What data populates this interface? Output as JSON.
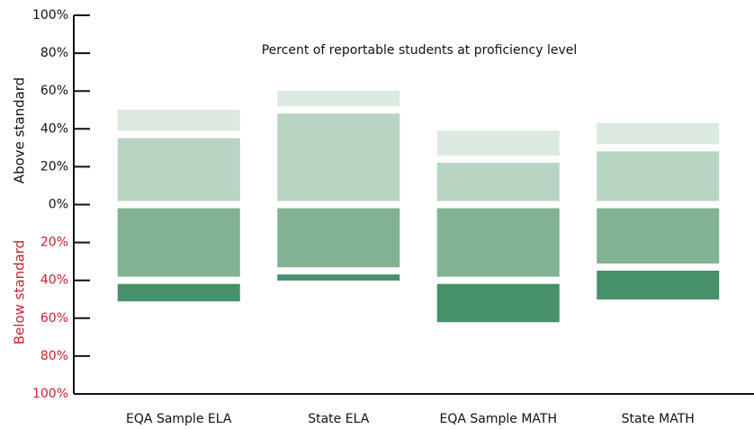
{
  "chart_data": {
    "type": "diverging_stacked_bar",
    "title": "Percent of reportable students at proficiency level",
    "y_label_above": "Above standard",
    "y_label_below": "Below standard",
    "categories": [
      "EQA Sample ELA",
      "State ELA",
      "EQA Sample MATH",
      "State MATH"
    ],
    "series": [
      {
        "color": "#b8d4c2",
        "values": [
          37,
          50,
          24,
          30
        ]
      },
      {
        "color": "#dce9e0",
        "values": [
          15,
          12,
          17,
          15
        ]
      },
      {
        "color": "#80b293",
        "values": [
          -40,
          -35,
          -40,
          -33
        ]
      },
      {
        "color": "#46906a",
        "values": [
          -13,
          -7,
          -24,
          -19
        ]
      }
    ],
    "ylim": [
      -100,
      100
    ],
    "yticks": [
      {
        "value": 100,
        "label": "100%"
      },
      {
        "value": 80,
        "label": "80%"
      },
      {
        "value": 60,
        "label": "60%"
      },
      {
        "value": 40,
        "label": "40%"
      },
      {
        "value": 20,
        "label": "20%"
      },
      {
        "value": 0,
        "label": "0%"
      },
      {
        "value": -20,
        "label": "20%"
      },
      {
        "value": -40,
        "label": "40%"
      },
      {
        "value": -60,
        "label": "60%"
      },
      {
        "value": -80,
        "label": "80%"
      },
      {
        "value": -100,
        "label": "100%"
      }
    ]
  }
}
